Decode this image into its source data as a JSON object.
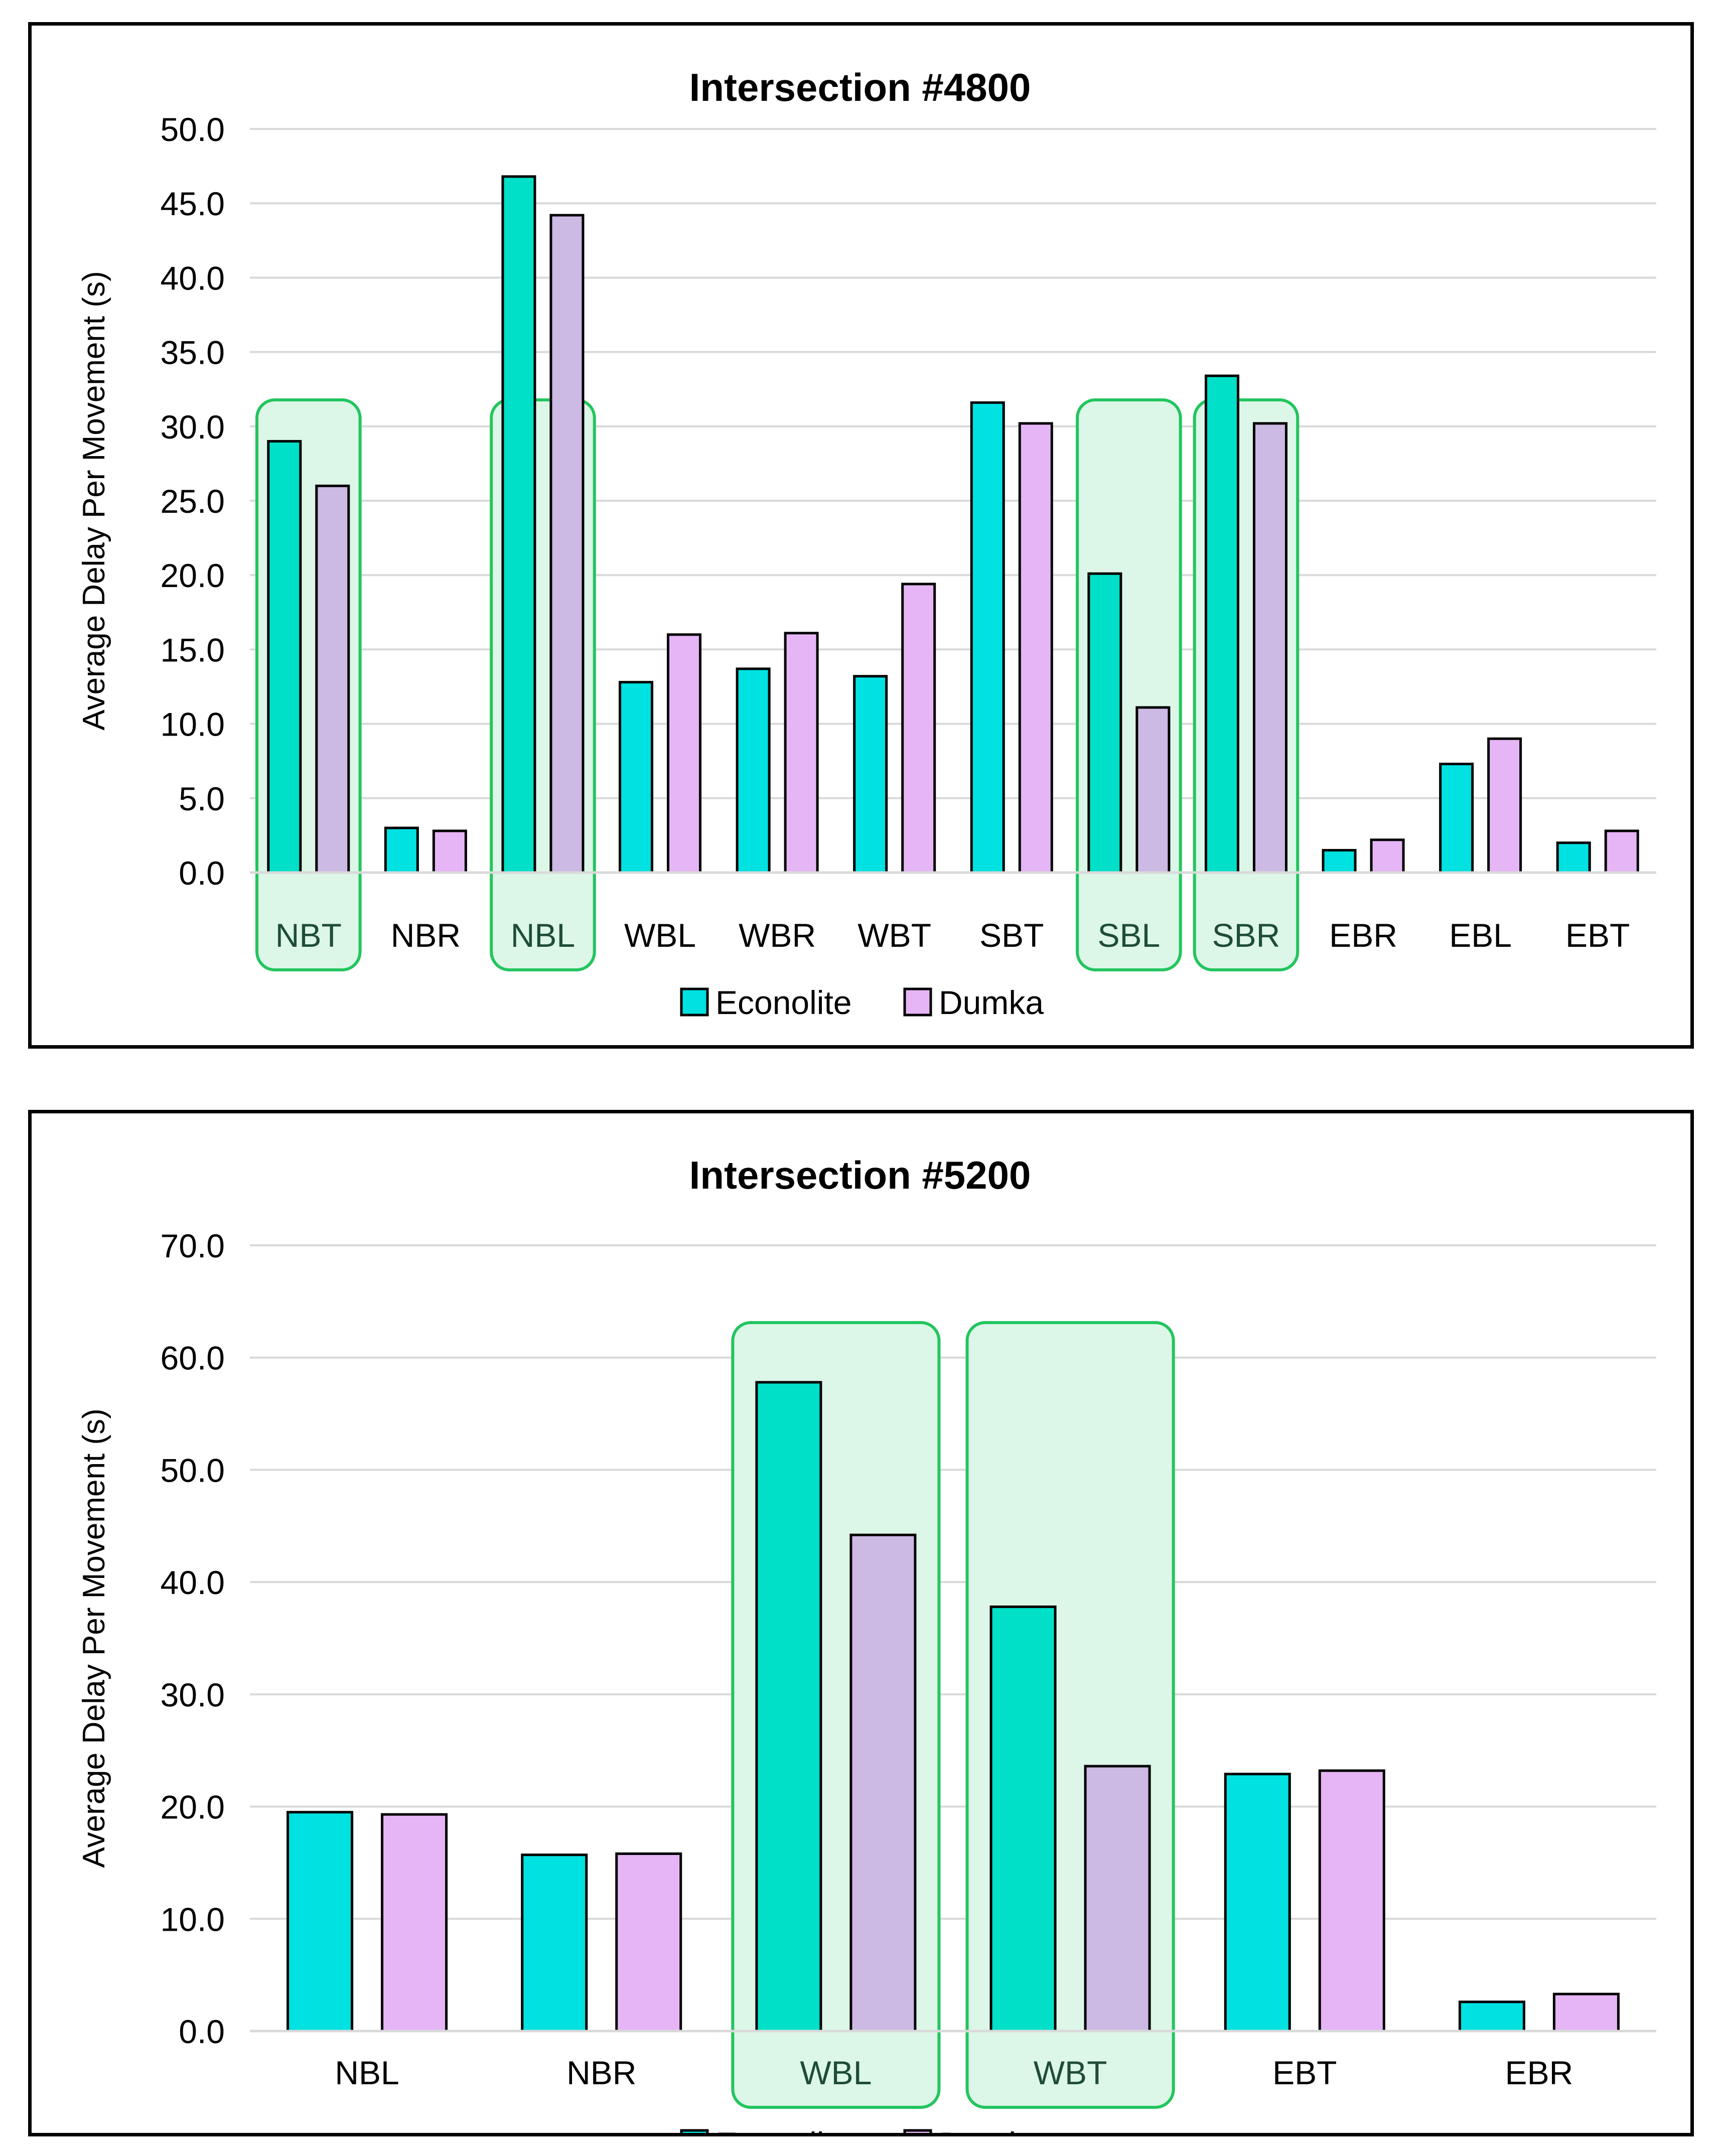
{
  "chart_data": [
    {
      "type": "bar",
      "title": "Intersection #4800",
      "ylabel": "Average Delay Per Movement (s)",
      "xlabel": "",
      "ylim": [
        0,
        50
      ],
      "yticks": [
        "0.0",
        "5.0",
        "10.0",
        "15.0",
        "20.0",
        "25.0",
        "30.0",
        "35.0",
        "40.0",
        "45.0",
        "50.0"
      ],
      "grid": true,
      "legend": "bottom",
      "categories": [
        "NBT",
        "NBR",
        "NBL",
        "WBL",
        "WBR",
        "WBT",
        "SBT",
        "SBL",
        "SBR",
        "EBR",
        "EBL",
        "EBT"
      ],
      "highlighted": [
        "NBT",
        "NBL",
        "SBL",
        "SBR"
      ],
      "series": [
        {
          "name": "Econolite",
          "values": [
            29.0,
            3.0,
            46.8,
            12.8,
            13.7,
            13.2,
            31.6,
            20.1,
            33.4,
            1.5,
            7.3,
            2.0
          ]
        },
        {
          "name": "Dumka",
          "values": [
            26.0,
            2.8,
            44.2,
            16.0,
            16.1,
            19.4,
            30.2,
            11.1,
            30.2,
            2.2,
            9.0,
            2.8
          ]
        }
      ]
    },
    {
      "type": "bar",
      "title": "Intersection #5200",
      "ylabel": "Average Delay Per Movement (s)",
      "xlabel": "",
      "ylim": [
        0,
        70
      ],
      "yticks": [
        "0.0",
        "10.0",
        "20.0",
        "30.0",
        "40.0",
        "50.0",
        "60.0",
        "70.0"
      ],
      "grid": true,
      "legend": "bottom",
      "categories": [
        "NBL",
        "NBR",
        "WBL",
        "WBT",
        "EBT",
        "EBR"
      ],
      "highlighted": [
        "WBL",
        "WBT"
      ],
      "series": [
        {
          "name": "Econolite",
          "values": [
            19.5,
            15.7,
            57.8,
            37.8,
            22.9,
            2.6
          ]
        },
        {
          "name": "Dumka",
          "values": [
            19.3,
            15.8,
            44.2,
            23.6,
            23.2,
            3.3
          ]
        }
      ]
    }
  ],
  "colors": {
    "econolite": "#00e1e1",
    "econolite_highlight": "#00e0c8",
    "dumka": "#e6b5f6",
    "dumka_highlight": "#ccb9e4",
    "highlight_fill": "#dcf6e8",
    "highlight_border": "#22c55e",
    "grid": "#d9d9d9"
  }
}
